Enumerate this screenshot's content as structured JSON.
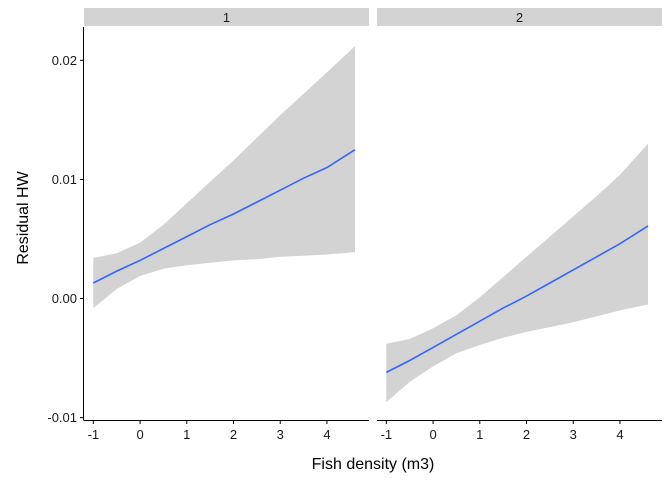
{
  "chart_data": {
    "type": "line",
    "xlabel": "Fish density (m3)",
    "ylabel": "Residual HW",
    "xlim": [
      -1.2,
      4.9
    ],
    "ylim": [
      -0.0102,
      0.0228
    ],
    "x_ticks": [
      -1,
      0,
      1,
      2,
      3,
      4
    ],
    "x_tick_labels": [
      "-1",
      "0",
      "1",
      "2",
      "3",
      "4"
    ],
    "y_ticks": [
      -0.01,
      0.0,
      0.01,
      0.02
    ],
    "y_tick_labels": [
      "-0.01",
      "0.00",
      "0.01",
      "0.02"
    ],
    "grid": false,
    "legend": "none",
    "colors": {
      "line": "#3366FF",
      "ribbon": "#D3D3D3",
      "strip": "#D3D3D3",
      "axis": "#000000"
    },
    "panels": [
      {
        "strip_label": "1",
        "x": [
          -1,
          -0.5,
          0,
          0.5,
          1,
          1.5,
          2,
          2.5,
          3,
          3.5,
          4,
          4.6
        ],
        "fit": [
          0.0013,
          0.0023,
          0.0032,
          0.0042,
          0.0052,
          0.0062,
          0.0071,
          0.0081,
          0.0091,
          0.0101,
          0.011,
          0.0125
        ],
        "lower": [
          -0.0008,
          0.0008,
          0.0019,
          0.0025,
          0.0028,
          0.003,
          0.0032,
          0.0033,
          0.0035,
          0.0036,
          0.0037,
          0.0039
        ],
        "upper": [
          0.0034,
          0.0038,
          0.0047,
          0.0062,
          0.008,
          0.0098,
          0.0116,
          0.0135,
          0.0154,
          0.0172,
          0.019,
          0.0212
        ]
      },
      {
        "strip_label": "2",
        "x": [
          -1,
          -0.5,
          0,
          0.5,
          1,
          1.5,
          2,
          2.5,
          3,
          3.5,
          4,
          4.6
        ],
        "fit": [
          -0.0062,
          -0.0052,
          -0.0041,
          -0.003,
          -0.0019,
          -0.0008,
          0.0002,
          0.0013,
          0.0024,
          0.0035,
          0.0046,
          0.0061
        ],
        "lower": [
          -0.0087,
          -0.007,
          -0.0057,
          -0.0046,
          -0.0039,
          -0.0033,
          -0.0028,
          -0.0024,
          -0.002,
          -0.0015,
          -0.001,
          -0.0005
        ],
        "upper": [
          -0.0038,
          -0.0034,
          -0.0025,
          -0.0014,
          0.0001,
          0.0018,
          0.0035,
          0.0052,
          0.0069,
          0.0086,
          0.0104,
          0.013
        ]
      }
    ]
  }
}
